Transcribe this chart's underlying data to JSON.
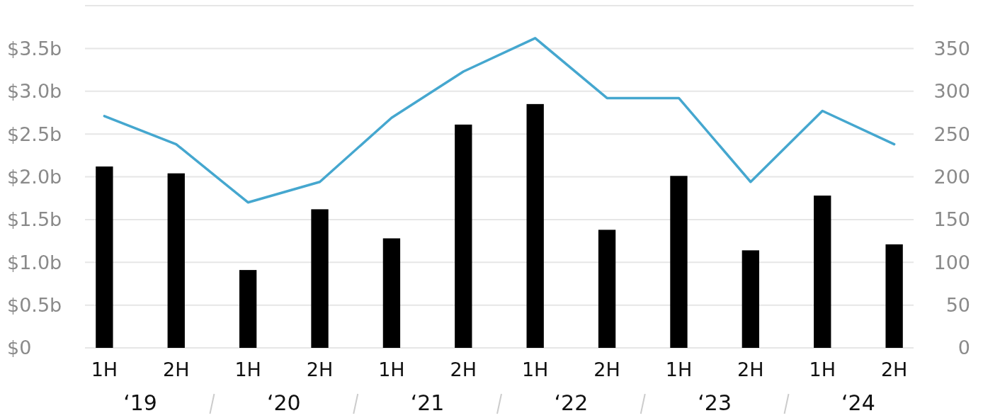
{
  "chart_data": {
    "type": "bar",
    "categories": [
      "1H",
      "2H",
      "1H",
      "2H",
      "1H",
      "2H",
      "1H",
      "2H",
      "1H",
      "2H",
      "1H",
      "2H"
    ],
    "series": [
      {
        "color": "#000000",
        "values": [
          2.12,
          2.04,
          0.91,
          1.62,
          1.28,
          2.61,
          2.85,
          1.38,
          2.01,
          1.14,
          1.78,
          1.21
        ]
      },
      {
        "type": "line",
        "axis": "y2",
        "color": "#45a7cf",
        "values": [
          271,
          238,
          170,
          194,
          269,
          323,
          362,
          292,
          292,
          194,
          277,
          238
        ]
      }
    ],
    "ylim": [
      0,
      4
    ],
    "yticks": [
      {
        "value": 0,
        "label": "$0"
      },
      {
        "value": 0.5,
        "label": "$0.5b"
      },
      {
        "value": 1,
        "label": "$1.0b"
      },
      {
        "value": 1.5,
        "label": "$1.5b"
      },
      {
        "value": 2,
        "label": "$2.0b"
      },
      {
        "value": 2.5,
        "label": "$2.5b"
      },
      {
        "value": 3,
        "label": "$3.0b"
      },
      {
        "value": 3.5,
        "label": "$3.5b"
      },
      {
        "value": 4,
        "label": null
      }
    ],
    "y2lim": [
      0,
      400
    ],
    "y2ticks": [
      0,
      50,
      100,
      150,
      200,
      250,
      300,
      350
    ],
    "grid": "y",
    "annotations": [
      "‘19",
      "‘20",
      "‘21",
      "‘22",
      "‘23",
      "‘24"
    ]
  }
}
